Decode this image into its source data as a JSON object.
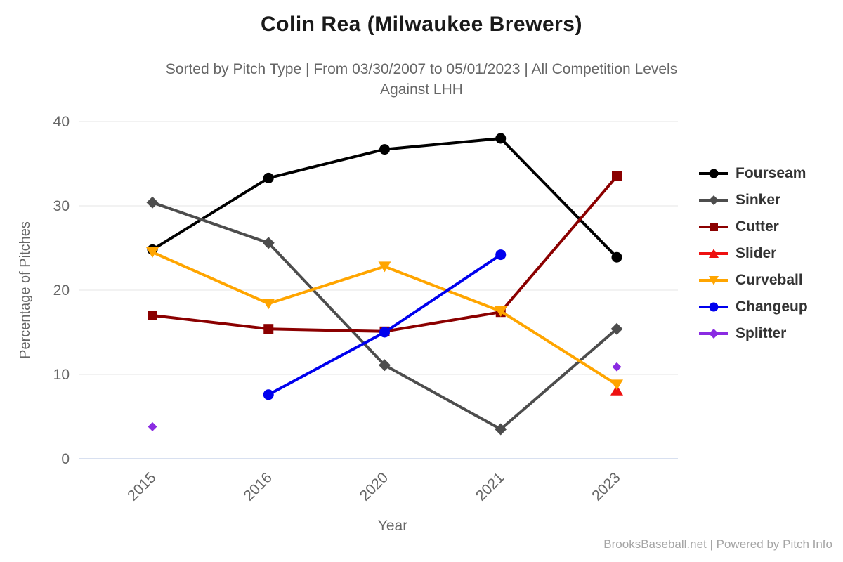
{
  "header": {
    "title": "Colin Rea (Milwaukee Brewers)",
    "subtitle_line1": "Sorted by Pitch Type | From 03/30/2007 to 05/01/2023 | All Competition Levels",
    "subtitle_line2": "Against LHH"
  },
  "footer": {
    "credit": "BrooksBaseball.net | Powered by Pitch Info"
  },
  "chart_data": {
    "type": "line",
    "title": "Colin Rea (Milwaukee Brewers)",
    "xlabel": "Year",
    "ylabel": "Percentage of Pitches",
    "categories": [
      "2015",
      "2016",
      "2020",
      "2021",
      "2023"
    ],
    "ylim": [
      0,
      40
    ],
    "yticks": [
      0,
      10,
      20,
      30,
      40
    ],
    "grid": true,
    "legend_position": "right",
    "series": [
      {
        "name": "Fourseam",
        "color": "#000000",
        "marker": "circle",
        "values": [
          24.8,
          33.3,
          36.7,
          38.0,
          23.9
        ]
      },
      {
        "name": "Sinker",
        "color": "#4d4d4d",
        "marker": "diamond",
        "values": [
          30.4,
          25.6,
          11.1,
          3.5,
          15.4
        ]
      },
      {
        "name": "Cutter",
        "color": "#8b0000",
        "marker": "square",
        "values": [
          17.0,
          15.4,
          15.1,
          17.4,
          33.5
        ]
      },
      {
        "name": "Slider",
        "color": "#ee1111",
        "marker": "triangle-up",
        "values": [
          null,
          null,
          null,
          null,
          8.1
        ]
      },
      {
        "name": "Curveball",
        "color": "#ffa500",
        "marker": "triangle-down",
        "values": [
          24.5,
          18.4,
          22.8,
          17.5,
          8.8
        ]
      },
      {
        "name": "Changeup",
        "color": "#0000ee",
        "marker": "circle",
        "values": [
          null,
          7.6,
          15.0,
          24.2,
          null
        ]
      },
      {
        "name": "Splitter",
        "color": "#8a2be2",
        "marker": "diamond",
        "values": [
          3.8,
          null,
          null,
          null,
          10.9
        ]
      }
    ],
    "colors": {
      "grid_line": "#e6e6e6",
      "zero_axis_line": "#ccd6eb",
      "tick_label": "#666666",
      "axis_title": "#666666"
    }
  }
}
